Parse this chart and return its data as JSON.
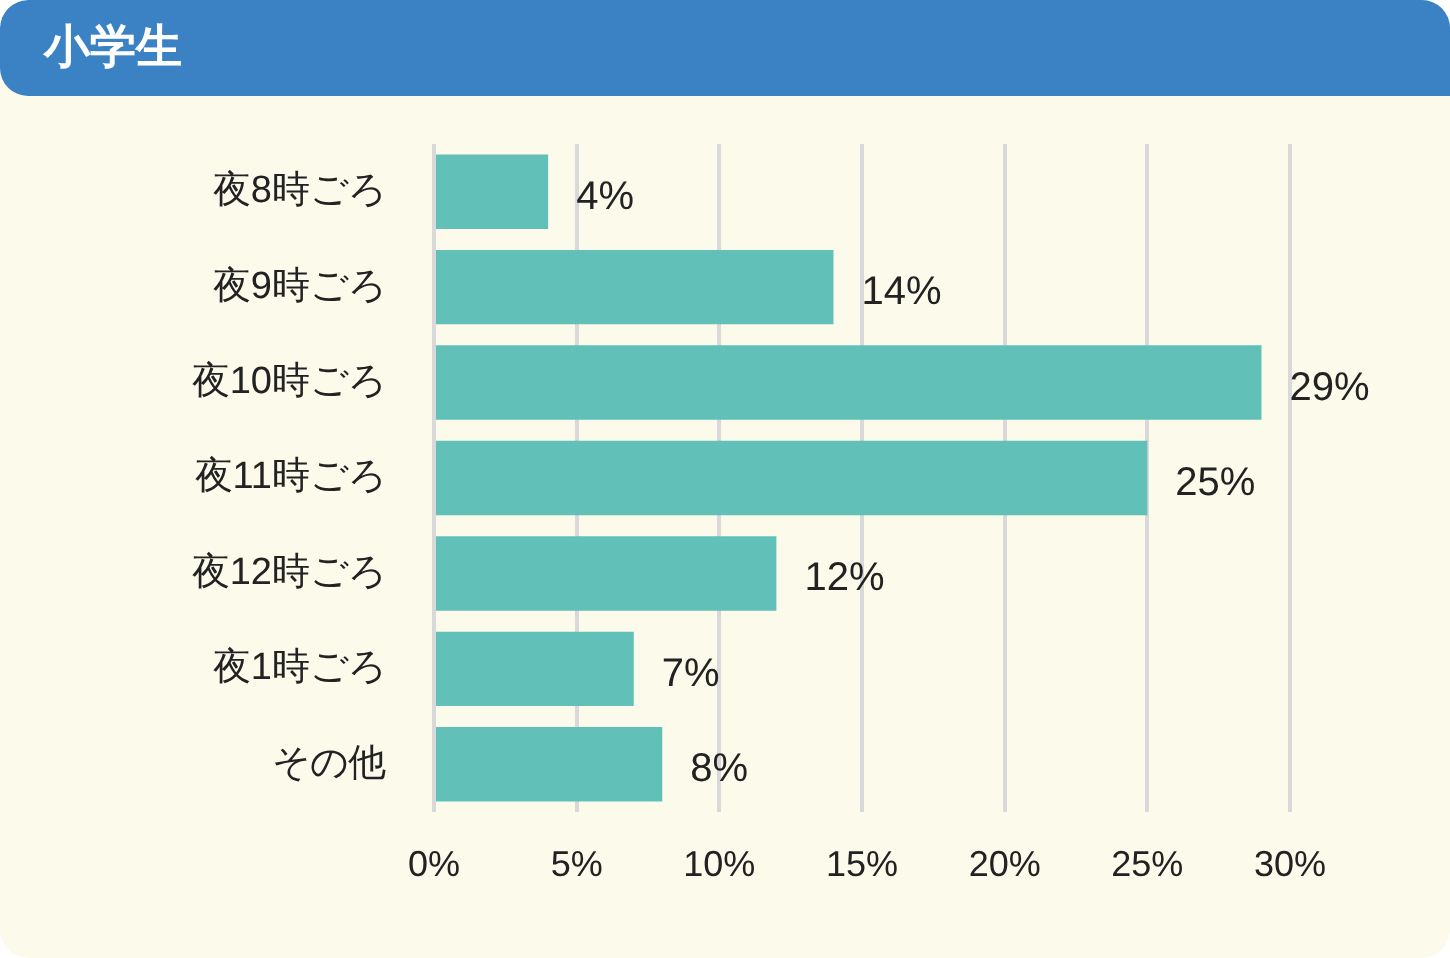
{
  "chart_data": {
    "type": "bar",
    "orientation": "horizontal",
    "title": "小学生",
    "categories": [
      "夜8時ごろ",
      "夜9時ごろ",
      "夜10時ごろ",
      "夜11時ごろ",
      "夜12時ごろ",
      "夜1時ごろ",
      "その他"
    ],
    "values": [
      4,
      14,
      29,
      25,
      12,
      7,
      8
    ],
    "value_labels": [
      "4%",
      "14%",
      "29%",
      "25%",
      "12%",
      "7%",
      "8%"
    ],
    "color": "#61c0b8",
    "xlim": [
      0,
      30
    ],
    "xticks": [
      {
        "value": 0,
        "label": "0%"
      },
      {
        "value": 5,
        "label": "5%"
      },
      {
        "value": 10,
        "label": "10%"
      },
      {
        "value": 15,
        "label": "15%"
      },
      {
        "value": 20,
        "label": "20%"
      },
      {
        "value": 25,
        "label": "25%"
      },
      {
        "value": 30,
        "label": "30%"
      }
    ],
    "grid": "x"
  }
}
